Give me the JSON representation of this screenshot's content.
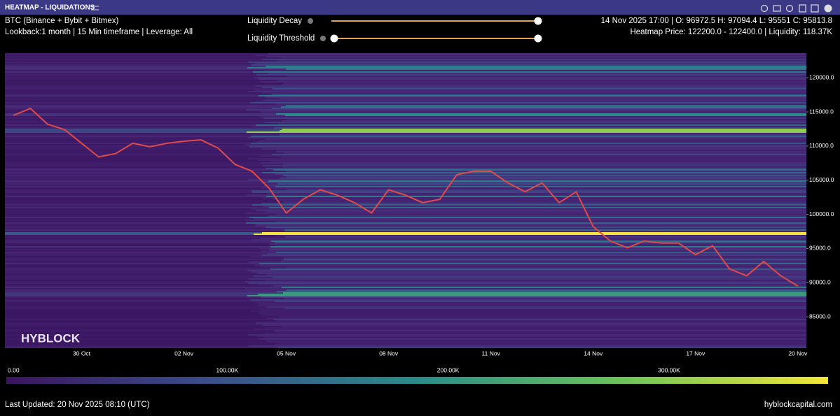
{
  "header": {
    "title": "HEATMAP - LIQUIDATIONS"
  },
  "info": {
    "market": "BTC (Binance + Bybit + Bitmex)",
    "settings": "Lookback:1 month | 15 Min timeframe | Leverage: All",
    "ohlc": "14 Nov 2025 17:00 | O: 96972.5 H: 97094.4 L: 95551 C: 95813.8",
    "heatmap": "Heatmap Price: 122200.0 - 122400.0 | Liquidity: 118.37K"
  },
  "controls": {
    "decay": "Liquidity Decay",
    "threshold": "Liquidity Threshold"
  },
  "chart_data": {
    "type": "heatmap",
    "watermark": "HYBLOCK",
    "color": "#e04a4a",
    "categories": [
      null,
      null,
      null,
      null,
      "30 Oct",
      null,
      null,
      null,
      null,
      null,
      "02 Nov",
      null,
      null,
      null,
      null,
      null,
      "05 Nov",
      null,
      null,
      null,
      null,
      null,
      "08 Nov",
      null,
      null,
      null,
      null,
      null,
      "11 Nov",
      null,
      null,
      null,
      null,
      null,
      "14 Nov",
      null,
      null,
      null,
      null,
      null,
      "17 Nov",
      null,
      null,
      null,
      null,
      null,
      "20 Nov"
    ],
    "values": [
      114500,
      115500,
      113200,
      112400,
      110400,
      108400,
      108900,
      110400,
      109900,
      110400,
      110700,
      110900,
      109700,
      107300,
      106300,
      103800,
      100200,
      102200,
      103600,
      102800,
      101700,
      100200,
      103600,
      102800,
      101700,
      102200,
      105800,
      106300,
      106300,
      104600,
      103300,
      104600,
      101700,
      103300,
      98200,
      96100,
      95100,
      96100,
      95800,
      95800,
      94100,
      95400,
      92000,
      91000,
      93100,
      91000,
      89500
    ],
    "ylim": [
      80400,
      123600
    ],
    "yticks": [
      {
        "value": 85000,
        "label": "85000.0"
      },
      {
        "value": 90000,
        "label": "90000.0"
      },
      {
        "value": 95000,
        "label": "95000.0"
      },
      {
        "value": 100000,
        "label": "100000.0"
      },
      {
        "value": 105000,
        "label": "105000.0"
      },
      {
        "value": 110000,
        "label": "110000.0"
      },
      {
        "value": 115000,
        "label": "115000.0"
      },
      {
        "value": 120000,
        "label": "120000.0"
      }
    ],
    "colorbar": {
      "lim": [
        0,
        372000
      ],
      "ticks": [
        {
          "value": 0,
          "label": "0.00"
        },
        {
          "value": 100000,
          "label": "100.00K"
        },
        {
          "value": 200000,
          "label": "200.00K"
        },
        {
          "value": 300000,
          "label": "300.00K"
        }
      ]
    }
  },
  "footer": {
    "updated": "Last Updated: 20 Nov 2025 08:10 (UTC)",
    "site": "hyblockcapital.com"
  }
}
